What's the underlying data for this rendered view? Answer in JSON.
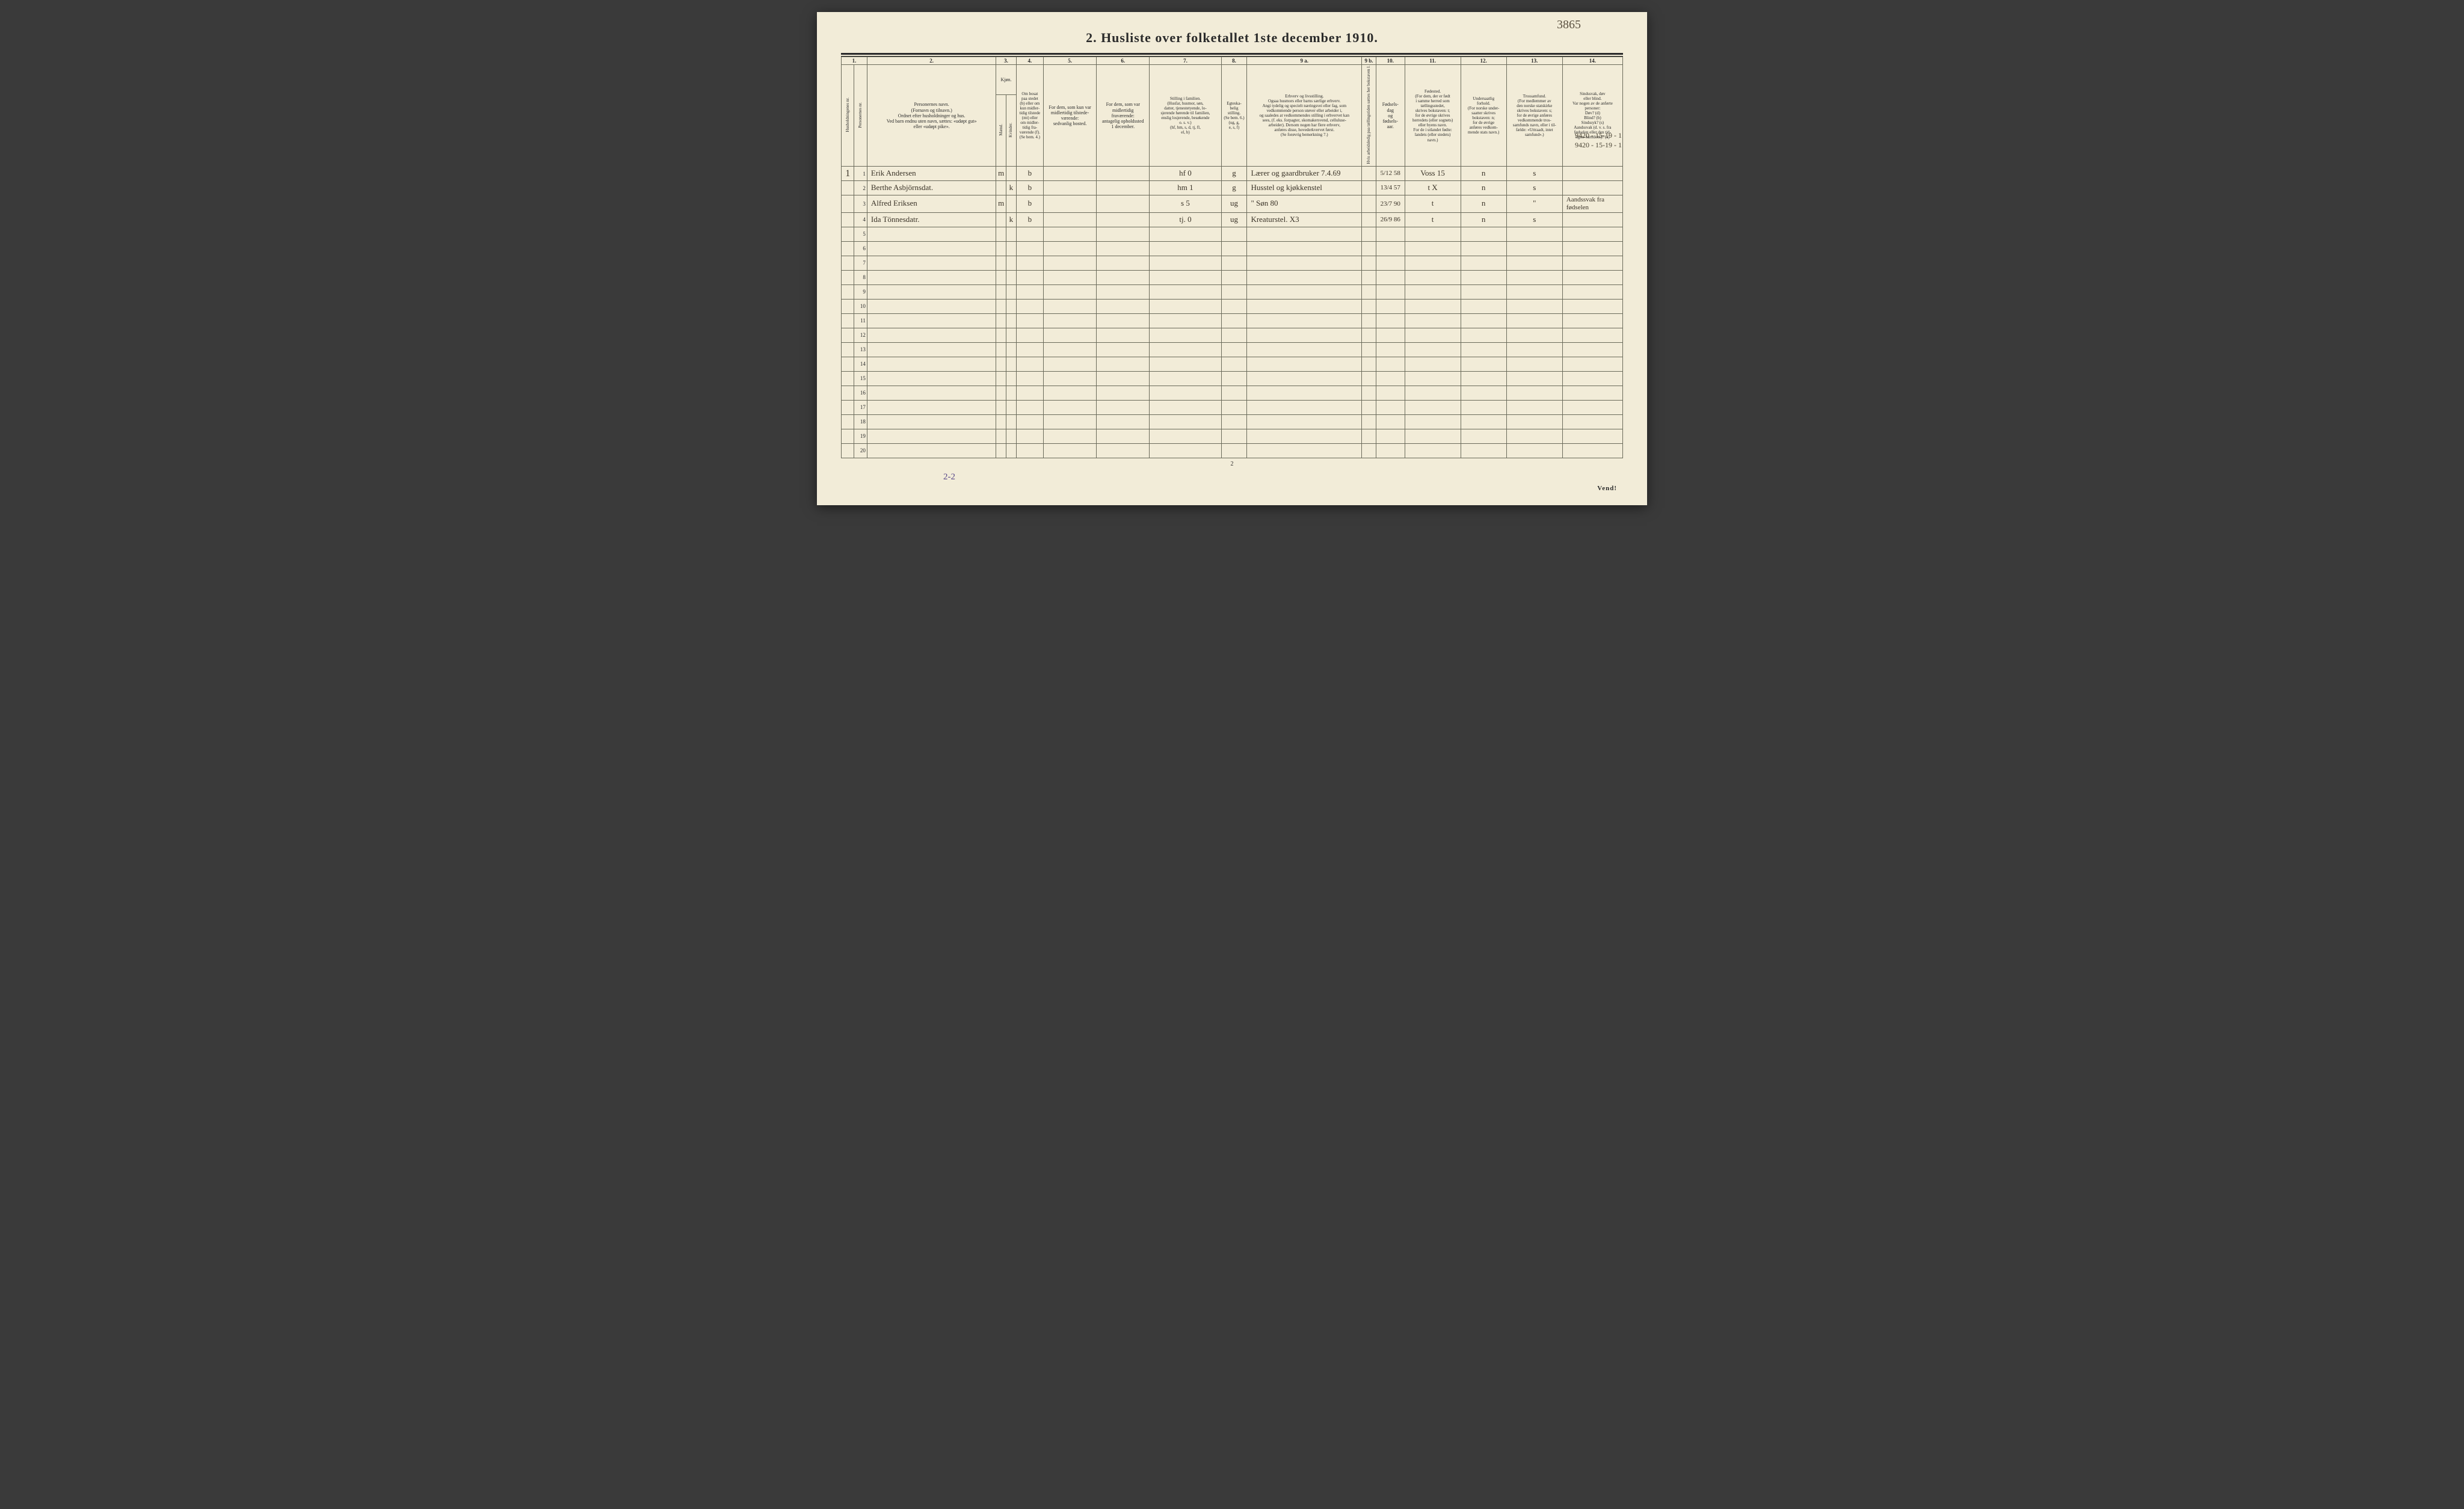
{
  "page": {
    "background_color": "#f2ecd8",
    "ink_color": "#2a2a2a",
    "handwriting_color": "#3a3328",
    "top_note": "3865",
    "title": "2.  Husliste over folketallet 1ste december 1910.",
    "footer_page_number": "2",
    "footer_vend": "Vend!",
    "bottom_note": "2-2",
    "margin_notes": [
      "9420 - 15-19 - 1",
      "9420 - 15-19 - 1"
    ]
  },
  "columns": {
    "numrow": [
      "1.",
      "2.",
      "3.",
      "4.",
      "5.",
      "6.",
      "7.",
      "8.",
      "9 a.",
      "9 b.",
      "10.",
      "11.",
      "12.",
      "13.",
      "14."
    ],
    "h1": "Husholdningenes nr.",
    "h1b": "Personernes nr.",
    "h2": "Personernes navn.\n(Fornavn og tilnavn.)\nOrdnet efter husholdninger og hus.\nVed barn endnu uten navn, sættes: «udøpt gut»\neller «udøpt pike».",
    "h3_top": "Kjøn.",
    "h3m": "Mænd.",
    "h3k": "Kvinder.",
    "h3mk": "m. k.",
    "h4": "Om bosat\npaa stedet\n(b) eller om\nkun midler-\ntidig tilstede\n(mt) eller\nom midler-\ntidig fra-\nværende (f).\n(Se bem. 4.)",
    "h5": "For dem, som kun var\nmidlertidig tilstede-\nværende:\nsedvanlig bosted.",
    "h6": "For dem, som var\nmidlertidig\nfraværende:\nantagelig opholdssted\n1 december.",
    "h7": "Stilling i familien.\n(Husfar, husmor, søn,\ndatter, tjenestetyende, lo-\nsjerende hørende til familien,\nenslig losjerende, besøkende\no. s. v.)\n(hf, hm, s, d, tj, fl,\nel, b)",
    "h8": "Egteska-\nbelig\nstilling.\n(Se bem. 6.)\n(ug, g,\ne, s, f)",
    "h9a": "Erhverv og livsstilling.\nOgsaa husmors eller barns særlige erhverv.\nAngi tydelig og specielt næringsvei eller fag, som\nvedkommende person utøver eller arbeider i,\nog saaledes at vedkommendes stilling i erhvervet kan\nsees, (f. eks. forpagter, skomakersvend, celluluse-\narbeider). Dersom nogen har flere erhverv,\nanføres disse, hovederkvervet først.\n(Se forøvrig bemerkning 7.)",
    "h9b": "Hvis arbeidsledig\npaa tællingstiden sættes\nher bokstaven l.",
    "h10": "Fødsels-\ndag\nog\nfødsels-\naar.",
    "h11": "Fødested.\n(For dem, der er født\ni samme herred som\ntællingsstedet,\nskrives bokstaven: t;\nfor de øvrige skrives\nherredets (eller sognets)\neller byens navn.\nFor de i utlandet fødte:\nlandets (eller stedets)\nnavn.)",
    "h12": "Undersaatlig\nforhold.\n(For norske under-\nsaatter skrives\nbokstaven: n;\nfor de øvrige\nanføres vedkom-\nmende stats navn.)",
    "h13": "Trossamfund.\n(For medlemmer av\nden norske statskirke\nskrives bokstaven: s;\nfor de øvrige anføres\nvedkommende tros-\nsamfunds navn, eller i til-\nfælde: «Uttraadt, intet\nsamfund».)",
    "h14": "Sindssvak, døv\neller blind.\nVar nogen av de anførte\npersoner:\nDøv?        (d)\nBlind?      (b)\nSindssyk?   (s)\nAandssvak (d. v. s. fra\nfødselen eller den tid-\nligste barndom)? (a)"
  },
  "rows": [
    {
      "hh": "1",
      "pn": "1",
      "name": "Erik Andersen",
      "kjon_m": "m",
      "kjon_k": "",
      "bosat": "b",
      "mt": "",
      "fra": "",
      "stilling": "hf   0",
      "egte": "g",
      "erhverv": "Lærer og gaardbruker   7.4.69",
      "arb": "",
      "dob": "5/12 58",
      "fsted": "Voss   15",
      "und": "n",
      "tros": "s",
      "sind": ""
    },
    {
      "hh": "",
      "pn": "2",
      "name": "Berthe Asbjörnsdat.",
      "kjon_m": "",
      "kjon_k": "k",
      "bosat": "b",
      "mt": "",
      "fra": "",
      "stilling": "hm   1",
      "egte": "g",
      "erhverv": "Husstel og kjøkkenstel",
      "arb": "",
      "dob": "13/4 57",
      "fsted": "t  X",
      "und": "n",
      "tros": "s",
      "sind": ""
    },
    {
      "hh": "",
      "pn": "3",
      "name": "Alfred Eriksen",
      "kjon_m": "m",
      "kjon_k": "",
      "bosat": "b",
      "mt": "",
      "fra": "",
      "stilling": "s    5",
      "egte": "ug",
      "erhverv": "\"   Søn   80",
      "arb": "",
      "dob": "23/7 90",
      "fsted": "t",
      "und": "n",
      "tros": "\"",
      "sind": "Aandssvak fra fødselen"
    },
    {
      "hh": "",
      "pn": "4",
      "name": "Ida Tönnesdatr.",
      "kjon_m": "",
      "kjon_k": "k",
      "bosat": "b",
      "mt": "",
      "fra": "",
      "stilling": "tj.   0",
      "egte": "ug",
      "erhverv": "Kreaturstel.   X3",
      "arb": "",
      "dob": "26/9 86",
      "fsted": "t",
      "und": "n",
      "tros": "s",
      "sind": ""
    },
    {
      "hh": "",
      "pn": "5",
      "name": "",
      "kjon_m": "",
      "kjon_k": "",
      "bosat": "",
      "mt": "",
      "fra": "",
      "stilling": "",
      "egte": "",
      "erhverv": "",
      "arb": "",
      "dob": "",
      "fsted": "",
      "und": "",
      "tros": "",
      "sind": ""
    },
    {
      "hh": "",
      "pn": "6",
      "name": "",
      "kjon_m": "",
      "kjon_k": "",
      "bosat": "",
      "mt": "",
      "fra": "",
      "stilling": "",
      "egte": "",
      "erhverv": "",
      "arb": "",
      "dob": "",
      "fsted": "",
      "und": "",
      "tros": "",
      "sind": ""
    },
    {
      "hh": "",
      "pn": "7",
      "name": "",
      "kjon_m": "",
      "kjon_k": "",
      "bosat": "",
      "mt": "",
      "fra": "",
      "stilling": "",
      "egte": "",
      "erhverv": "",
      "arb": "",
      "dob": "",
      "fsted": "",
      "und": "",
      "tros": "",
      "sind": ""
    },
    {
      "hh": "",
      "pn": "8",
      "name": "",
      "kjon_m": "",
      "kjon_k": "",
      "bosat": "",
      "mt": "",
      "fra": "",
      "stilling": "",
      "egte": "",
      "erhverv": "",
      "arb": "",
      "dob": "",
      "fsted": "",
      "und": "",
      "tros": "",
      "sind": ""
    },
    {
      "hh": "",
      "pn": "9",
      "name": "",
      "kjon_m": "",
      "kjon_k": "",
      "bosat": "",
      "mt": "",
      "fra": "",
      "stilling": "",
      "egte": "",
      "erhverv": "",
      "arb": "",
      "dob": "",
      "fsted": "",
      "und": "",
      "tros": "",
      "sind": ""
    },
    {
      "hh": "",
      "pn": "10",
      "name": "",
      "kjon_m": "",
      "kjon_k": "",
      "bosat": "",
      "mt": "",
      "fra": "",
      "stilling": "",
      "egte": "",
      "erhverv": "",
      "arb": "",
      "dob": "",
      "fsted": "",
      "und": "",
      "tros": "",
      "sind": ""
    },
    {
      "hh": "",
      "pn": "11",
      "name": "",
      "kjon_m": "",
      "kjon_k": "",
      "bosat": "",
      "mt": "",
      "fra": "",
      "stilling": "",
      "egte": "",
      "erhverv": "",
      "arb": "",
      "dob": "",
      "fsted": "",
      "und": "",
      "tros": "",
      "sind": ""
    },
    {
      "hh": "",
      "pn": "12",
      "name": "",
      "kjon_m": "",
      "kjon_k": "",
      "bosat": "",
      "mt": "",
      "fra": "",
      "stilling": "",
      "egte": "",
      "erhverv": "",
      "arb": "",
      "dob": "",
      "fsted": "",
      "und": "",
      "tros": "",
      "sind": ""
    },
    {
      "hh": "",
      "pn": "13",
      "name": "",
      "kjon_m": "",
      "kjon_k": "",
      "bosat": "",
      "mt": "",
      "fra": "",
      "stilling": "",
      "egte": "",
      "erhverv": "",
      "arb": "",
      "dob": "",
      "fsted": "",
      "und": "",
      "tros": "",
      "sind": ""
    },
    {
      "hh": "",
      "pn": "14",
      "name": "",
      "kjon_m": "",
      "kjon_k": "",
      "bosat": "",
      "mt": "",
      "fra": "",
      "stilling": "",
      "egte": "",
      "erhverv": "",
      "arb": "",
      "dob": "",
      "fsted": "",
      "und": "",
      "tros": "",
      "sind": ""
    },
    {
      "hh": "",
      "pn": "15",
      "name": "",
      "kjon_m": "",
      "kjon_k": "",
      "bosat": "",
      "mt": "",
      "fra": "",
      "stilling": "",
      "egte": "",
      "erhverv": "",
      "arb": "",
      "dob": "",
      "fsted": "",
      "und": "",
      "tros": "",
      "sind": ""
    },
    {
      "hh": "",
      "pn": "16",
      "name": "",
      "kjon_m": "",
      "kjon_k": "",
      "bosat": "",
      "mt": "",
      "fra": "",
      "stilling": "",
      "egte": "",
      "erhverv": "",
      "arb": "",
      "dob": "",
      "fsted": "",
      "und": "",
      "tros": "",
      "sind": ""
    },
    {
      "hh": "",
      "pn": "17",
      "name": "",
      "kjon_m": "",
      "kjon_k": "",
      "bosat": "",
      "mt": "",
      "fra": "",
      "stilling": "",
      "egte": "",
      "erhverv": "",
      "arb": "",
      "dob": "",
      "fsted": "",
      "und": "",
      "tros": "",
      "sind": ""
    },
    {
      "hh": "",
      "pn": "18",
      "name": "",
      "kjon_m": "",
      "kjon_k": "",
      "bosat": "",
      "mt": "",
      "fra": "",
      "stilling": "",
      "egte": "",
      "erhverv": "",
      "arb": "",
      "dob": "",
      "fsted": "",
      "und": "",
      "tros": "",
      "sind": ""
    },
    {
      "hh": "",
      "pn": "19",
      "name": "",
      "kjon_m": "",
      "kjon_k": "",
      "bosat": "",
      "mt": "",
      "fra": "",
      "stilling": "",
      "egte": "",
      "erhverv": "",
      "arb": "",
      "dob": "",
      "fsted": "",
      "und": "",
      "tros": "",
      "sind": ""
    },
    {
      "hh": "",
      "pn": "20",
      "name": "",
      "kjon_m": "",
      "kjon_k": "",
      "bosat": "",
      "mt": "",
      "fra": "",
      "stilling": "",
      "egte": "",
      "erhverv": "",
      "arb": "",
      "dob": "",
      "fsted": "",
      "und": "",
      "tros": "",
      "sind": ""
    }
  ]
}
